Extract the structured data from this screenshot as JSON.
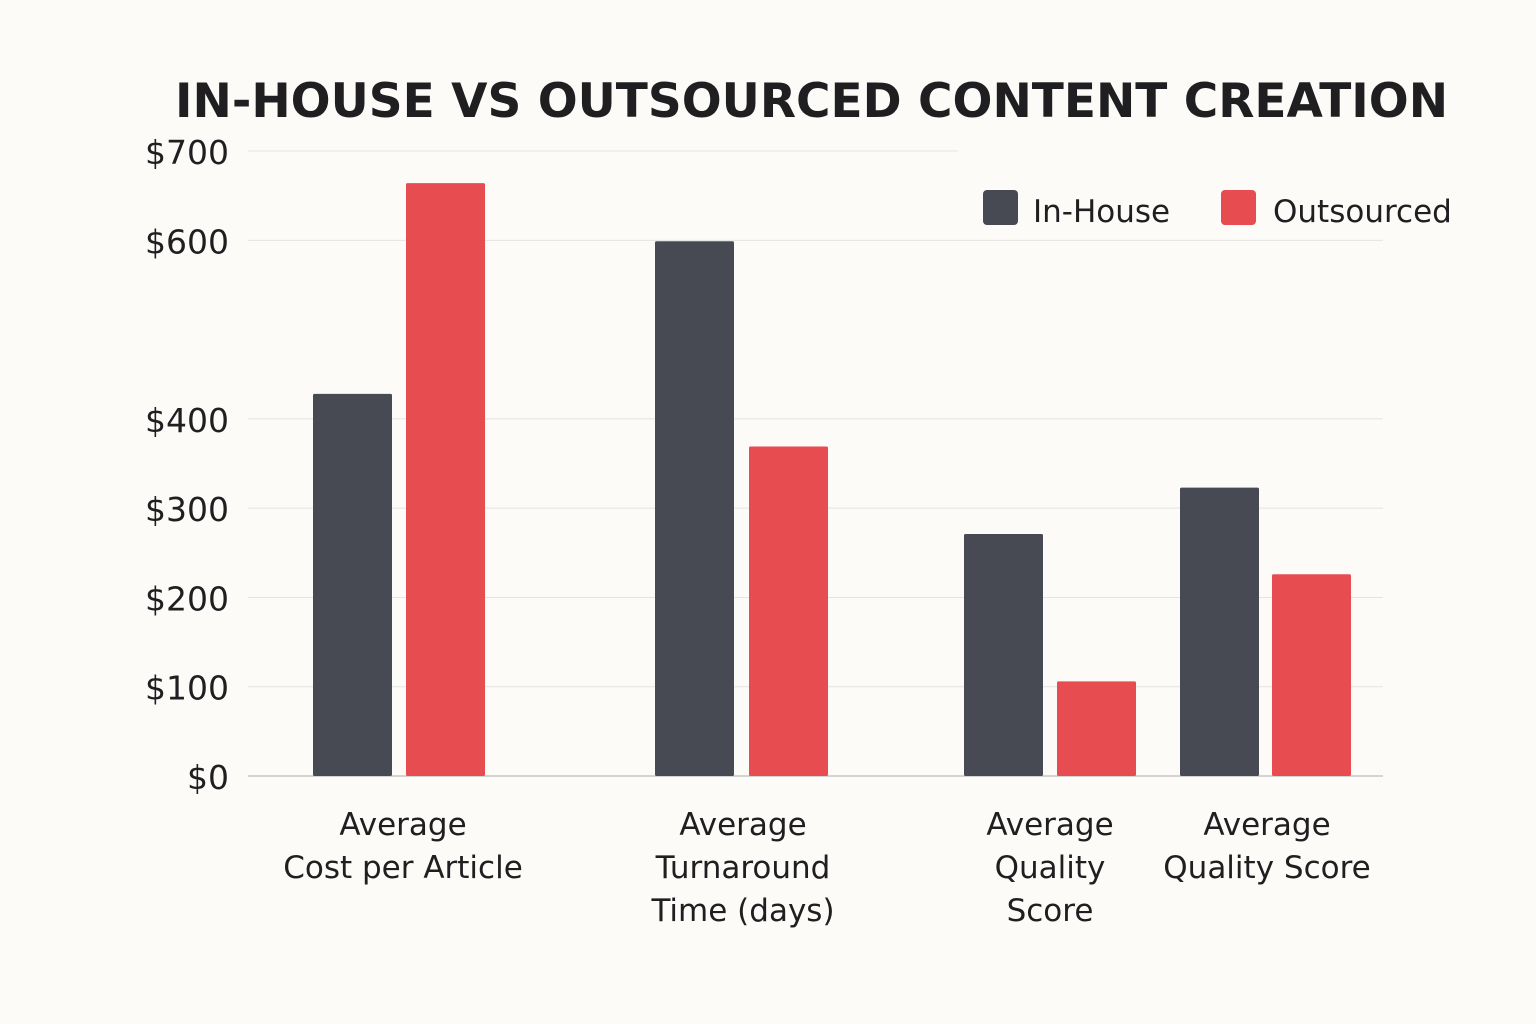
{
  "chart_data": {
    "type": "bar",
    "title": "IN-HOUSE VS OUTSOURCED CONTENT CREATION",
    "xlabel": "",
    "ylabel": "",
    "y_ticks": [
      0,
      100,
      200,
      300,
      400,
      600,
      700
    ],
    "y_tick_labels": [
      "$0",
      "$100",
      "$200",
      "$300",
      "$400",
      "$600",
      "$700"
    ],
    "categories": [
      [
        "Average",
        "Cost per Article"
      ],
      [
        "Average",
        "Turnaround",
        "Time (days)"
      ],
      [
        "Average",
        "Quality",
        "Score"
      ],
      [
        "Average",
        "Quality Score"
      ]
    ],
    "series": [
      {
        "name": "In-House",
        "color": "#474a52",
        "values": [
          428,
          599,
          271,
          323
        ]
      },
      {
        "name": "Outsourced",
        "color": "#e74c50",
        "values": [
          664,
          369,
          106,
          226
        ]
      }
    ],
    "legend_position": "top-right",
    "grid": true
  }
}
